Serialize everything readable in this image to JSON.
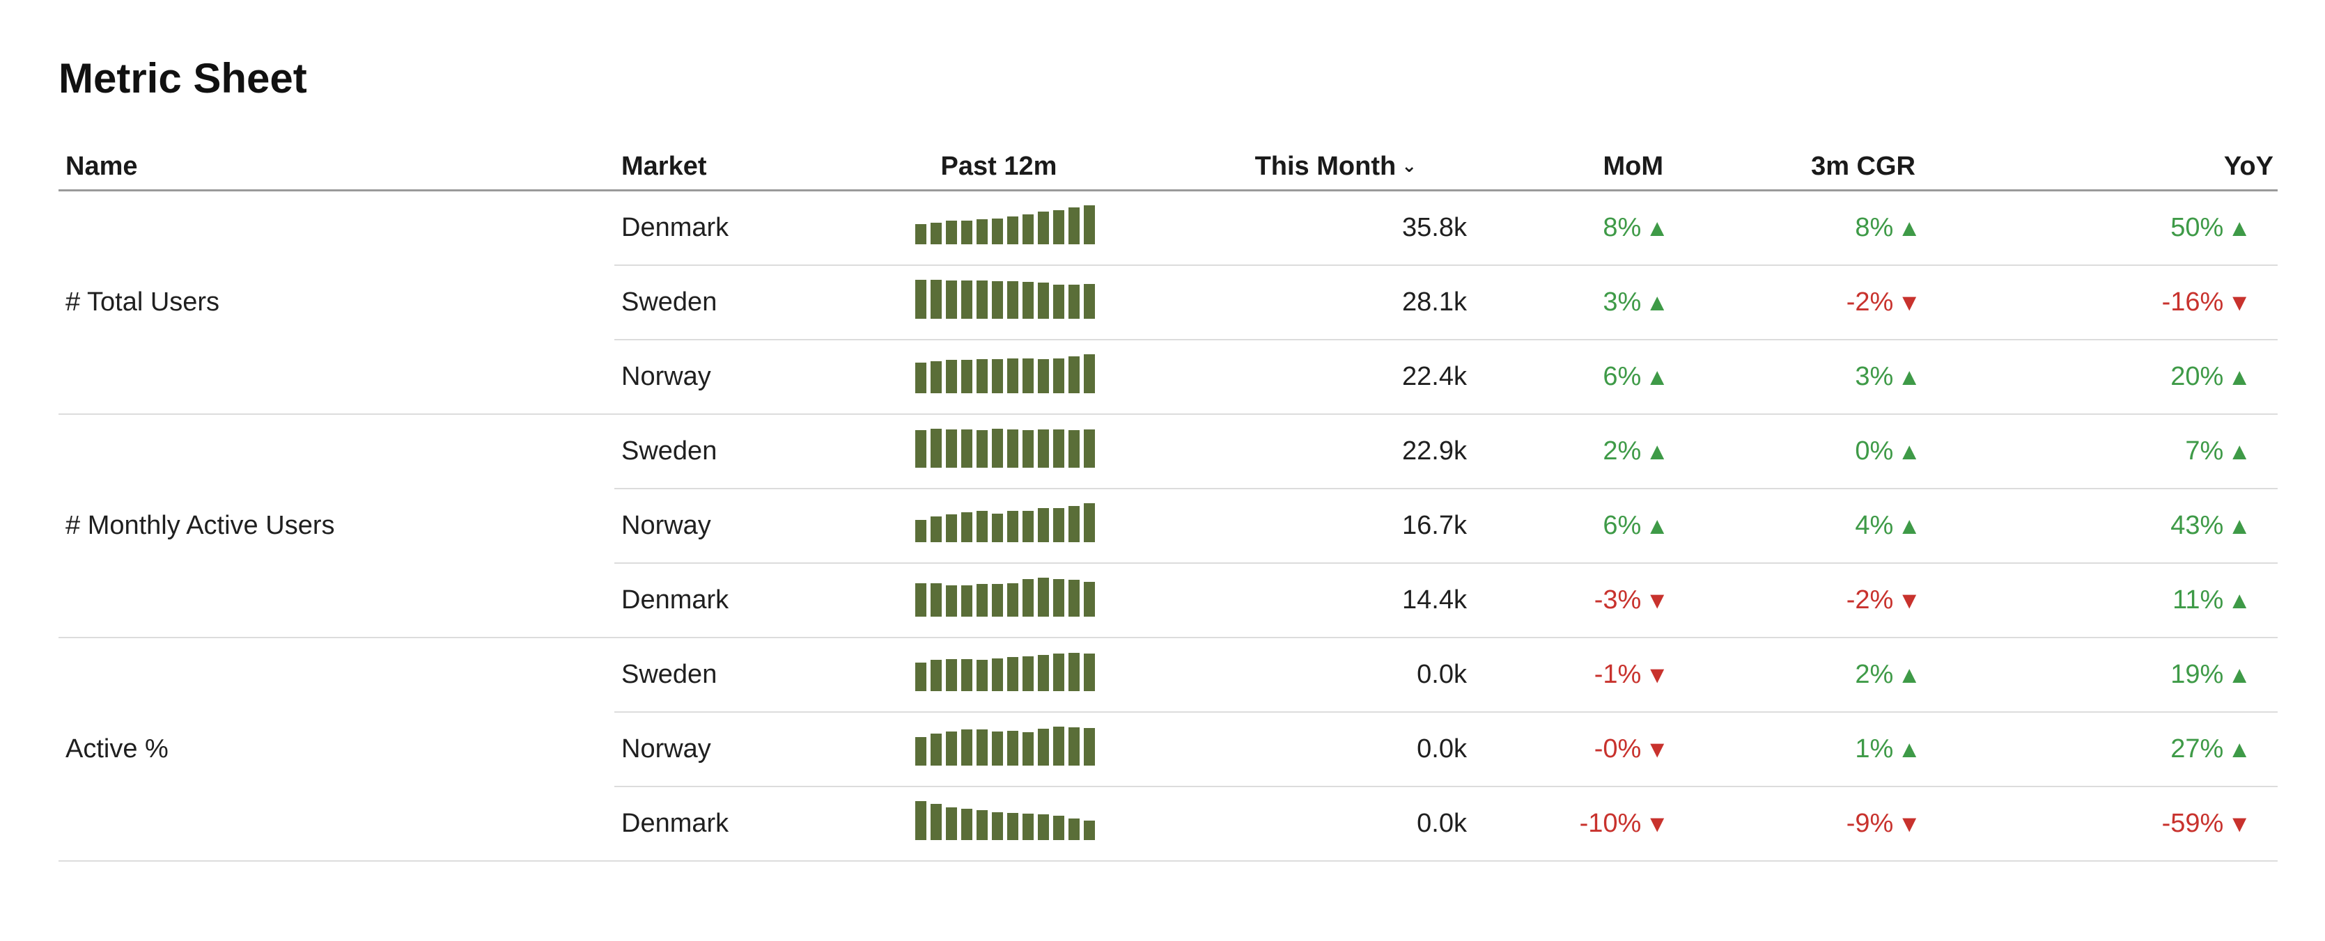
{
  "page_title": "Metric Sheet",
  "columns": {
    "name": "Name",
    "market": "Market",
    "past12m": "Past 12m",
    "this_month": "This Month",
    "mom": "MoM",
    "cgr": "3m CGR",
    "yoy": "YoY"
  },
  "sort_icon": "chevron-down-icon",
  "colors": {
    "positive": "#3e9a47",
    "negative": "#c8322d",
    "sparkline": "#5a6e38"
  },
  "groups": [
    {
      "name": "# Total Users",
      "rows": [
        {
          "market": "Denmark",
          "this_month": "35.8k",
          "mom": "8%",
          "mom_dir": "up",
          "cgr": "8%",
          "cgr_dir": "up",
          "yoy": "50%",
          "yoy_dir": "up",
          "spark": [
            0.52,
            0.56,
            0.6,
            0.6,
            0.64,
            0.66,
            0.72,
            0.76,
            0.84,
            0.88,
            0.94,
            1.0
          ]
        },
        {
          "market": "Sweden",
          "this_month": "28.1k",
          "mom": "3%",
          "mom_dir": "up",
          "cgr": "-2%",
          "cgr_dir": "down",
          "yoy": "-16%",
          "yoy_dir": "down",
          "spark": [
            1.0,
            1.0,
            0.98,
            0.98,
            0.98,
            0.96,
            0.96,
            0.94,
            0.92,
            0.88,
            0.88,
            0.9
          ]
        },
        {
          "market": "Norway",
          "this_month": "22.4k",
          "mom": "6%",
          "mom_dir": "up",
          "cgr": "3%",
          "cgr_dir": "up",
          "yoy": "20%",
          "yoy_dir": "up",
          "spark": [
            0.78,
            0.82,
            0.86,
            0.86,
            0.88,
            0.88,
            0.9,
            0.9,
            0.88,
            0.9,
            0.94,
            1.0
          ]
        }
      ]
    },
    {
      "name": "# Monthly Active Users",
      "rows": [
        {
          "market": "Sweden",
          "this_month": "22.9k",
          "mom": "2%",
          "mom_dir": "up",
          "cgr": "0%",
          "cgr_dir": "up",
          "yoy": "7%",
          "yoy_dir": "up",
          "spark": [
            0.96,
            1.0,
            0.98,
            0.98,
            0.96,
            1.0,
            0.98,
            0.96,
            0.98,
            0.98,
            0.96,
            0.98
          ]
        },
        {
          "market": "Norway",
          "this_month": "16.7k",
          "mom": "6%",
          "mom_dir": "up",
          "cgr": "4%",
          "cgr_dir": "up",
          "yoy": "43%",
          "yoy_dir": "up",
          "spark": [
            0.58,
            0.66,
            0.72,
            0.76,
            0.8,
            0.74,
            0.8,
            0.8,
            0.88,
            0.88,
            0.92,
            1.0
          ]
        },
        {
          "market": "Denmark",
          "this_month": "14.4k",
          "mom": "-3%",
          "mom_dir": "down",
          "cgr": "-2%",
          "cgr_dir": "down",
          "yoy": "11%",
          "yoy_dir": "up",
          "spark": [
            0.86,
            0.86,
            0.8,
            0.8,
            0.84,
            0.84,
            0.86,
            0.96,
            1.0,
            0.96,
            0.94,
            0.9
          ]
        }
      ]
    },
    {
      "name": "Active %",
      "rows": [
        {
          "market": "Sweden",
          "this_month": "0.0k",
          "mom": "-1%",
          "mom_dir": "down",
          "cgr": "2%",
          "cgr_dir": "up",
          "yoy": "19%",
          "yoy_dir": "up",
          "spark": [
            0.74,
            0.8,
            0.82,
            0.82,
            0.8,
            0.84,
            0.88,
            0.9,
            0.92,
            0.96,
            0.98,
            0.96
          ]
        },
        {
          "market": "Norway",
          "this_month": "0.0k",
          "mom": "-0%",
          "mom_dir": "down",
          "cgr": "1%",
          "cgr_dir": "up",
          "yoy": "27%",
          "yoy_dir": "up",
          "spark": [
            0.74,
            0.82,
            0.88,
            0.92,
            0.92,
            0.88,
            0.9,
            0.86,
            0.94,
            1.0,
            0.98,
            0.96
          ]
        },
        {
          "market": "Denmark",
          "this_month": "0.0k",
          "mom": "-10%",
          "mom_dir": "down",
          "cgr": "-9%",
          "cgr_dir": "down",
          "yoy": "-59%",
          "yoy_dir": "down",
          "spark": [
            1.0,
            0.92,
            0.84,
            0.8,
            0.76,
            0.72,
            0.7,
            0.68,
            0.66,
            0.62,
            0.56,
            0.5
          ]
        }
      ]
    }
  ]
}
